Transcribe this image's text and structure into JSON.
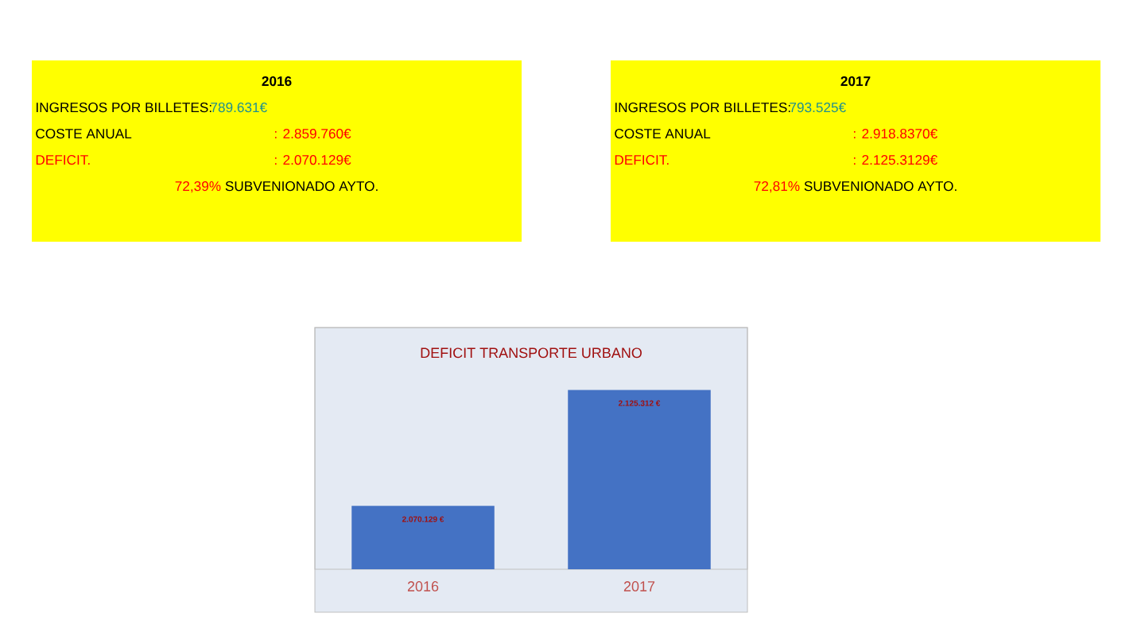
{
  "chart_data": [
    {
      "type": "other",
      "title": "2016",
      "annotations": [
        "INGRESOS POR BILLETES:",
        "789.631€",
        "COSTE ANUAL",
        ": 2.859.760€",
        "DEFICIT.",
        ": 2.070.129€",
        "72,39%",
        "SUBVENIONADO AYTO."
      ]
    },
    {
      "type": "other",
      "title": "2017",
      "annotations": [
        "INGRESOS POR BILLETES:",
        "793.525€",
        "COSTE ANUAL",
        ": 2.918.8370€",
        "DEFICIT.",
        ": 2.125.3129€",
        "72,81%",
        "SUBVENIONADO AYTO."
      ]
    },
    {
      "type": "bar",
      "title": "DEFICIT TRANSPORTE URBANO",
      "categories": [
        "2016",
        "2017"
      ],
      "values": [
        2070129,
        2125312
      ],
      "value_labels": [
        "2.070.129 €",
        "2.125.312 €"
      ],
      "color": "#4472c4",
      "ylim": [
        2040000,
        2155000
      ],
      "tick_labels": "x"
    }
  ]
}
